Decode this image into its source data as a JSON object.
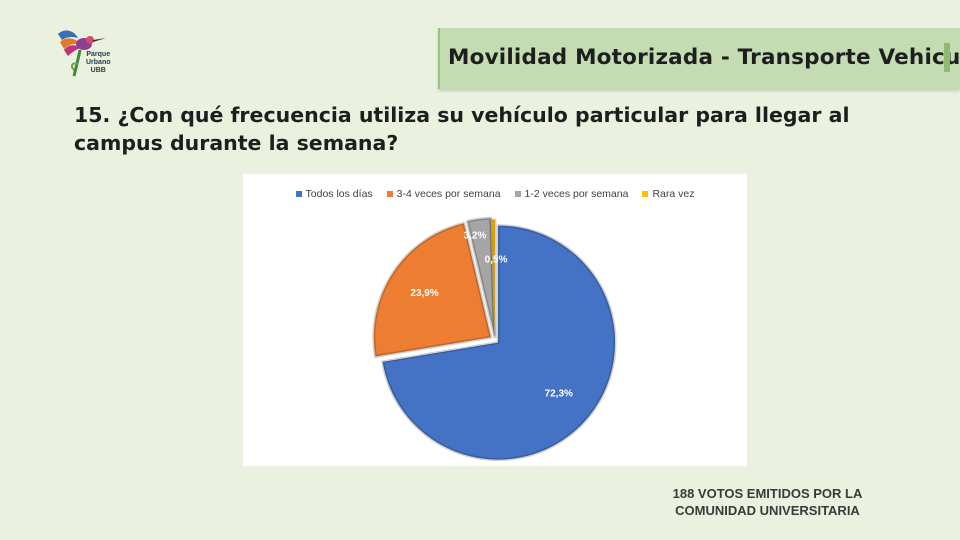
{
  "logo": {
    "line1": "Parque",
    "line2": "Urbano",
    "line3": "UBB"
  },
  "banner": {
    "title": "Movilidad Motorizada - Transporte Vehicular"
  },
  "question": "15.  ¿Con qué frecuencia utiliza su vehículo particular para llegar al campus durante la semana?",
  "footnote": {
    "line1": "188  VOTOS EMITIDOS POR LA",
    "line2": "COMUNIDAD UNIVERSITARIA"
  },
  "chart_data": {
    "type": "pie",
    "title": "",
    "legend_position": "top",
    "categories": [
      "Todos los días",
      "3-4 veces por semana",
      "1-2 veces por semana",
      "Rara vez"
    ],
    "values": [
      72.3,
      23.9,
      3.2,
      0.5
    ],
    "labels": [
      "72,3%",
      "23,9%",
      "3,2%",
      "0,5%"
    ],
    "colors": [
      "#4472c4",
      "#ed7d31",
      "#a5a5a5",
      "#ffc000"
    ],
    "exploded": true
  }
}
